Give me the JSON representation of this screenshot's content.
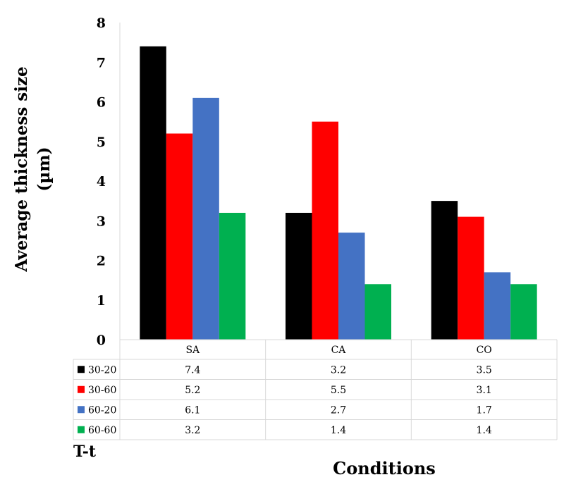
{
  "chart_data": {
    "type": "bar",
    "categories": [
      "SA",
      "CA",
      "CO"
    ],
    "series": [
      {
        "name": "30-20",
        "values": [
          7.4,
          3.2,
          3.5
        ],
        "color": "#000000",
        "labels": [
          "7.4",
          "3.2",
          "3.5"
        ]
      },
      {
        "name": "30-60",
        "values": [
          5.2,
          5.5,
          3.1
        ],
        "color": "#ff0000",
        "labels": [
          "5.2",
          "5.5",
          "3.1"
        ]
      },
      {
        "name": "60-20",
        "values": [
          6.1,
          2.7,
          1.7
        ],
        "color": "#4472c4",
        "labels": [
          "6.1",
          "2.7",
          "1.7"
        ]
      },
      {
        "name": "60-60",
        "values": [
          3.2,
          1.4,
          1.4
        ],
        "color": "#00b050",
        "labels": [
          "3.2",
          "1.4",
          "1.4"
        ]
      }
    ],
    "ylabel_line1": "Average thickness size",
    "ylabel_line2": "(µm)",
    "xlabel": "Conditions",
    "table_corner_label": "T-t",
    "ylim": [
      0,
      8
    ],
    "yticks": [
      "0",
      "1",
      "2",
      "3",
      "4",
      "5",
      "6",
      "7",
      "8"
    ],
    "grid": false,
    "legend": "data-table-left"
  }
}
